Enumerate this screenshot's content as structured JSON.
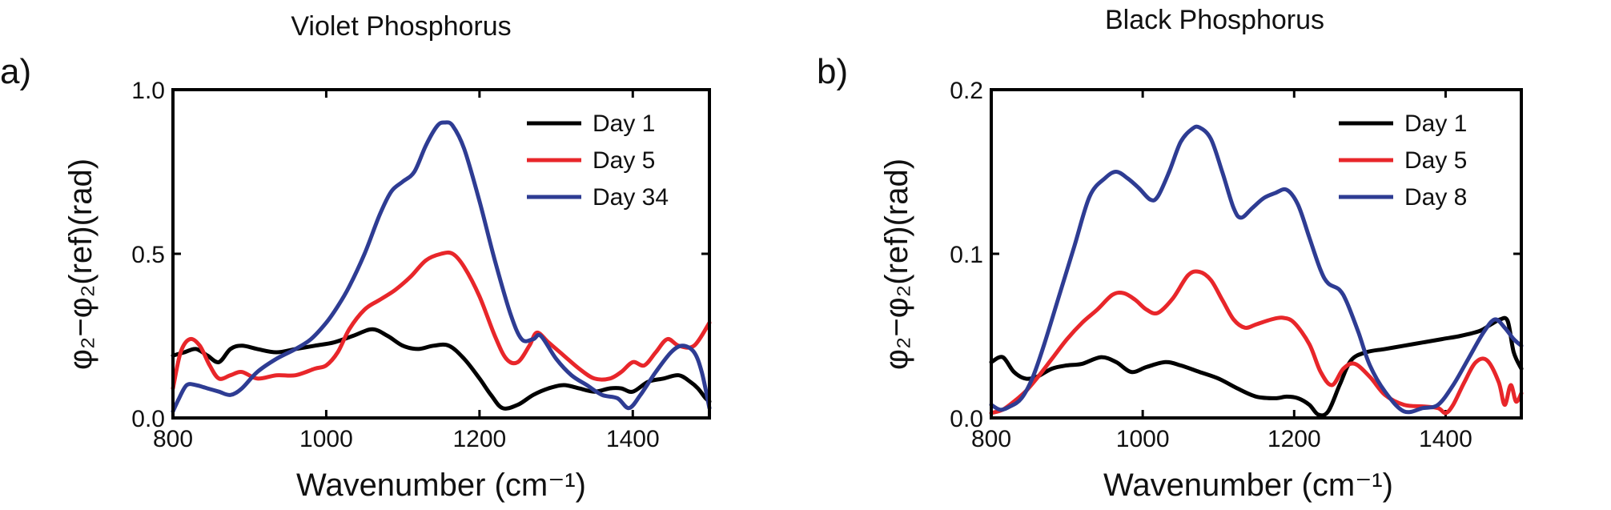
{
  "chart_data": [
    {
      "type": "line",
      "panel_label": "a)",
      "title": "Violet Phosphorus",
      "xlabel": "Wavenumber (cm⁻¹)",
      "ylabel": "φ₂−φ₂(ref)(rad)",
      "xlim": [
        800,
        1500
      ],
      "ylim": [
        0.0,
        1.0
      ],
      "xticks": [
        800,
        1000,
        1200,
        1400
      ],
      "xtick_labels": [
        "800",
        "1000",
        "1200",
        "1400"
      ],
      "yticks": [
        0.0,
        0.5,
        1.0
      ],
      "ytick_labels": [
        "0.0",
        "0.5",
        "1.0"
      ],
      "legend_position": "top-right",
      "grid": false,
      "series": [
        {
          "name": "Day 1",
          "color": "#000000",
          "x": [
            800,
            815,
            830,
            845,
            860,
            875,
            890,
            910,
            935,
            960,
            985,
            1010,
            1035,
            1060,
            1080,
            1100,
            1120,
            1140,
            1160,
            1180,
            1200,
            1215,
            1230,
            1250,
            1270,
            1290,
            1310,
            1330,
            1350,
            1370,
            1385,
            1400,
            1420,
            1440,
            1460,
            1475,
            1485,
            1495,
            1500
          ],
          "y": [
            0.19,
            0.2,
            0.21,
            0.19,
            0.17,
            0.21,
            0.22,
            0.21,
            0.2,
            0.21,
            0.22,
            0.23,
            0.25,
            0.27,
            0.25,
            0.22,
            0.21,
            0.22,
            0.22,
            0.18,
            0.12,
            0.07,
            0.03,
            0.04,
            0.07,
            0.09,
            0.1,
            0.09,
            0.08,
            0.09,
            0.09,
            0.08,
            0.11,
            0.12,
            0.13,
            0.11,
            0.09,
            0.06,
            0.05
          ]
        },
        {
          "name": "Day 5",
          "color": "#e8262a",
          "x": [
            800,
            810,
            822,
            835,
            848,
            860,
            875,
            890,
            910,
            935,
            960,
            985,
            1000,
            1015,
            1030,
            1050,
            1070,
            1090,
            1110,
            1130,
            1150,
            1165,
            1180,
            1200,
            1220,
            1235,
            1250,
            1265,
            1275,
            1290,
            1310,
            1330,
            1350,
            1370,
            1385,
            1400,
            1415,
            1430,
            1445,
            1460,
            1480,
            1500
          ],
          "y": [
            0.09,
            0.2,
            0.24,
            0.22,
            0.16,
            0.12,
            0.13,
            0.14,
            0.12,
            0.13,
            0.13,
            0.15,
            0.16,
            0.2,
            0.27,
            0.33,
            0.36,
            0.39,
            0.43,
            0.48,
            0.5,
            0.5,
            0.46,
            0.37,
            0.25,
            0.18,
            0.17,
            0.22,
            0.26,
            0.23,
            0.19,
            0.15,
            0.12,
            0.12,
            0.14,
            0.17,
            0.16,
            0.2,
            0.24,
            0.22,
            0.22,
            0.29
          ]
        },
        {
          "name": "Day 34",
          "color": "#2e3c93",
          "x": [
            800,
            808,
            818,
            830,
            845,
            860,
            875,
            890,
            910,
            935,
            960,
            980,
            1000,
            1015,
            1030,
            1050,
            1070,
            1085,
            1100,
            1115,
            1130,
            1145,
            1155,
            1165,
            1180,
            1200,
            1220,
            1240,
            1255,
            1270,
            1280,
            1300,
            1320,
            1340,
            1360,
            1380,
            1395,
            1410,
            1430,
            1450,
            1465,
            1480,
            1490,
            1500
          ],
          "y": [
            0.02,
            0.06,
            0.1,
            0.1,
            0.09,
            0.08,
            0.07,
            0.09,
            0.14,
            0.18,
            0.21,
            0.24,
            0.29,
            0.34,
            0.4,
            0.5,
            0.62,
            0.69,
            0.72,
            0.75,
            0.83,
            0.89,
            0.9,
            0.89,
            0.82,
            0.66,
            0.48,
            0.32,
            0.24,
            0.24,
            0.25,
            0.18,
            0.13,
            0.1,
            0.07,
            0.06,
            0.03,
            0.07,
            0.14,
            0.2,
            0.22,
            0.2,
            0.14,
            0.03
          ]
        }
      ]
    },
    {
      "type": "line",
      "panel_label": "b)",
      "title": "Black Phosphorus",
      "xlabel": "Wavenumber (cm⁻¹)",
      "ylabel": "φ₂−φ₂(ref)(rad)",
      "xlim": [
        800,
        1500
      ],
      "ylim": [
        0.0,
        0.2
      ],
      "xticks": [
        800,
        1000,
        1200,
        1400
      ],
      "xtick_labels": [
        "800",
        "1000",
        "1200",
        "1400"
      ],
      "yticks": [
        0.0,
        0.1,
        0.2
      ],
      "ytick_labels": [
        "0.0",
        "0.1",
        "0.2"
      ],
      "legend_position": "top-right",
      "grid": false,
      "series": [
        {
          "name": "Day 1",
          "color": "#000000",
          "x": [
            800,
            815,
            830,
            845,
            860,
            880,
            900,
            920,
            945,
            965,
            985,
            1005,
            1030,
            1050,
            1075,
            1100,
            1125,
            1150,
            1175,
            1190,
            1205,
            1220,
            1232,
            1245,
            1260,
            1275,
            1295,
            1320,
            1345,
            1370,
            1395,
            1420,
            1445,
            1460,
            1472,
            1482,
            1490,
            1500
          ],
          "y": [
            0.034,
            0.037,
            0.028,
            0.024,
            0.025,
            0.03,
            0.032,
            0.033,
            0.037,
            0.034,
            0.028,
            0.031,
            0.034,
            0.032,
            0.028,
            0.024,
            0.018,
            0.013,
            0.012,
            0.013,
            0.012,
            0.008,
            0.002,
            0.004,
            0.02,
            0.035,
            0.04,
            0.042,
            0.044,
            0.046,
            0.048,
            0.05,
            0.053,
            0.057,
            0.06,
            0.059,
            0.04,
            0.03
          ]
        },
        {
          "name": "Day 5",
          "color": "#e8262a",
          "x": [
            800,
            815,
            830,
            845,
            860,
            880,
            900,
            920,
            940,
            960,
            975,
            990,
            1005,
            1020,
            1040,
            1060,
            1075,
            1090,
            1105,
            1120,
            1135,
            1150,
            1170,
            1185,
            1200,
            1220,
            1235,
            1250,
            1265,
            1280,
            1300,
            1320,
            1345,
            1370,
            1390,
            1400,
            1410,
            1425,
            1440,
            1455,
            1470,
            1478,
            1486,
            1493,
            1500
          ],
          "y": [
            0.003,
            0.005,
            0.01,
            0.016,
            0.024,
            0.036,
            0.048,
            0.058,
            0.066,
            0.075,
            0.076,
            0.072,
            0.066,
            0.064,
            0.073,
            0.087,
            0.089,
            0.084,
            0.072,
            0.06,
            0.055,
            0.057,
            0.06,
            0.061,
            0.058,
            0.045,
            0.028,
            0.02,
            0.03,
            0.033,
            0.025,
            0.014,
            0.008,
            0.007,
            0.006,
            0.003,
            0.008,
            0.022,
            0.034,
            0.035,
            0.022,
            0.008,
            0.02,
            0.01,
            0.015
          ]
        },
        {
          "name": "Day 8",
          "color": "#2e3c93",
          "x": [
            800,
            812,
            825,
            840,
            855,
            870,
            890,
            910,
            930,
            950,
            965,
            980,
            995,
            1010,
            1020,
            1035,
            1050,
            1065,
            1075,
            1090,
            1105,
            1120,
            1130,
            1145,
            1160,
            1175,
            1190,
            1205,
            1220,
            1235,
            1245,
            1260,
            1270,
            1285,
            1300,
            1320,
            1345,
            1370,
            1390,
            1410,
            1430,
            1450,
            1465,
            1478,
            1490,
            1500
          ],
          "y": [
            0.008,
            0.005,
            0.007,
            0.012,
            0.025,
            0.045,
            0.075,
            0.105,
            0.135,
            0.146,
            0.15,
            0.146,
            0.14,
            0.133,
            0.135,
            0.15,
            0.168,
            0.176,
            0.177,
            0.17,
            0.15,
            0.128,
            0.122,
            0.128,
            0.134,
            0.137,
            0.139,
            0.13,
            0.11,
            0.09,
            0.082,
            0.078,
            0.07,
            0.052,
            0.032,
            0.016,
            0.004,
            0.006,
            0.008,
            0.02,
            0.036,
            0.052,
            0.06,
            0.055,
            0.048,
            0.044
          ]
        }
      ]
    }
  ]
}
